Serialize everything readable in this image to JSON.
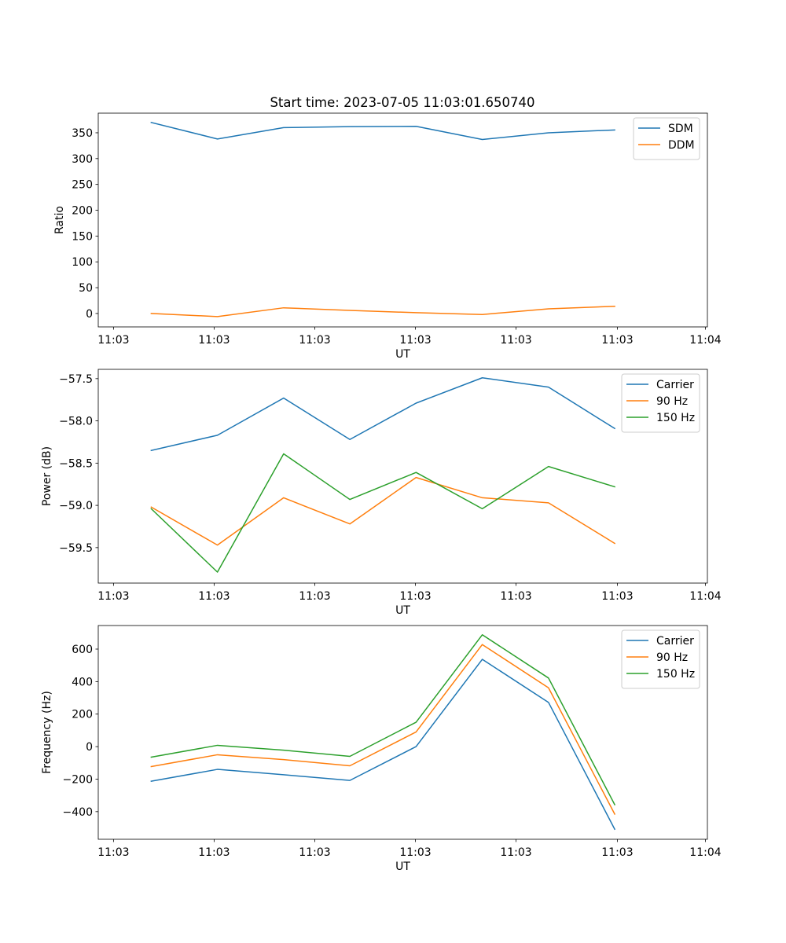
{
  "figure_title": "Start time: 2023-07-05 11:03:01.650740",
  "colors": {
    "blue": "#1f77b4",
    "orange": "#ff7f0e",
    "green": "#2ca02c"
  },
  "chart_data": [
    {
      "type": "line",
      "title": "Start time: 2023-07-05 11:03:01.650740",
      "xlabel": "UT",
      "ylabel": "Ratio",
      "x": [
        1,
        2,
        3,
        4,
        5,
        6,
        7,
        8
      ],
      "xlim": [
        0.2,
        9.4
      ],
      "xticks": [
        0.43,
        1.95,
        3.47,
        4.99,
        6.51,
        8.04,
        9.37
      ],
      "xtick_labels": [
        "11:03",
        "11:03",
        "11:03",
        "11:03",
        "11:03",
        "11:03",
        "11:04"
      ],
      "ylim": [
        -26,
        388
      ],
      "yticks": [
        0,
        50,
        100,
        150,
        200,
        250,
        300,
        350
      ],
      "ytick_labels": [
        "0",
        "50",
        "100",
        "150",
        "200",
        "250",
        "300",
        "350"
      ],
      "legend": "top-right",
      "series": [
        {
          "name": "SDM",
          "color": "#1f77b4",
          "values": [
            370,
            338,
            360,
            362,
            362.5,
            337,
            350,
            355.5
          ]
        },
        {
          "name": "DDM",
          "color": "#ff7f0e",
          "values": [
            0,
            -6,
            11,
            6,
            1.5,
            -2,
            9,
            14
          ]
        }
      ]
    },
    {
      "type": "line",
      "title": "",
      "xlabel": "UT",
      "ylabel": "Power (dB)",
      "x": [
        1,
        2,
        3,
        4,
        5,
        6,
        7,
        8
      ],
      "xlim": [
        0.2,
        9.4
      ],
      "xticks": [
        0.43,
        1.95,
        3.47,
        4.99,
        6.51,
        8.04,
        9.37
      ],
      "xtick_labels": [
        "11:03",
        "11:03",
        "11:03",
        "11:03",
        "11:03",
        "11:03",
        "11:04"
      ],
      "ylim": [
        -59.92,
        -57.39
      ],
      "yticks": [
        -59.5,
        -59.0,
        -58.5,
        -58.0,
        -57.5
      ],
      "ytick_labels": [
        "−59.5",
        "−59.0",
        "−58.5",
        "−58.0",
        "−57.5"
      ],
      "legend": "top-right",
      "series": [
        {
          "name": "Carrier",
          "color": "#1f77b4",
          "values": [
            -58.35,
            -58.17,
            -57.73,
            -58.22,
            -57.79,
            -57.49,
            -57.6,
            -58.09
          ]
        },
        {
          "name": "90 Hz",
          "color": "#ff7f0e",
          "values": [
            -59.02,
            -59.47,
            -58.91,
            -59.22,
            -58.67,
            -58.91,
            -58.97,
            -59.45
          ]
        },
        {
          "name": "150 Hz",
          "color": "#2ca02c",
          "values": [
            -59.04,
            -59.79,
            -58.39,
            -58.93,
            -58.61,
            -59.04,
            -58.54,
            -58.78
          ]
        }
      ]
    },
    {
      "type": "line",
      "title": "",
      "xlabel": "UT",
      "ylabel": "Frequency (Hz)",
      "x": [
        1,
        2,
        3,
        4,
        5,
        6,
        7,
        8
      ],
      "xlim": [
        0.2,
        9.4
      ],
      "xticks": [
        0.43,
        1.95,
        3.47,
        4.99,
        6.51,
        8.04,
        9.37
      ],
      "xtick_labels": [
        "11:03",
        "11:03",
        "11:03",
        "11:03",
        "11:03",
        "11:03",
        "11:04"
      ],
      "ylim": [
        -570,
        745
      ],
      "yticks": [
        -400,
        -200,
        0,
        200,
        400,
        600
      ],
      "ytick_labels": [
        "−400",
        "−200",
        "0",
        "200",
        "400",
        "600"
      ],
      "legend": "top-right",
      "series": [
        {
          "name": "Carrier",
          "color": "#1f77b4",
          "values": [
            -213,
            -140,
            -173,
            -208,
            0,
            537,
            272,
            -508
          ]
        },
        {
          "name": "90 Hz",
          "color": "#ff7f0e",
          "values": [
            -123,
            -50,
            -80,
            -118,
            90,
            628,
            362,
            -415
          ]
        },
        {
          "name": "150 Hz",
          "color": "#2ca02c",
          "values": [
            -65,
            8,
            -22,
            -60,
            150,
            688,
            422,
            -357
          ]
        }
      ]
    }
  ]
}
